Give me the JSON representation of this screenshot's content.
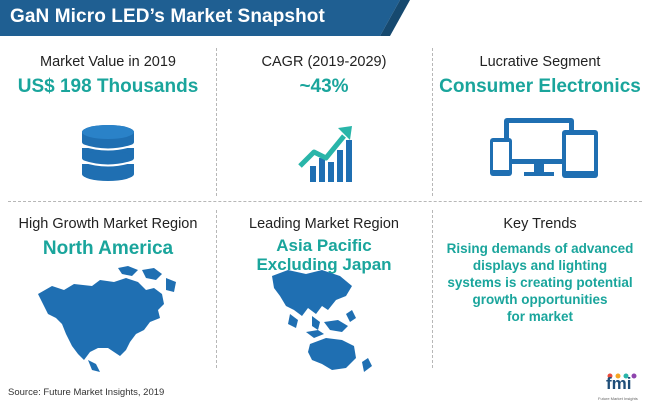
{
  "title": "GaN Micro LED’s Market Snapshot",
  "cells": {
    "market_value": {
      "label": "Market Value in 2019",
      "value": "US$ 198 Thousands"
    },
    "cagr": {
      "label": "CAGR (2019-2029)",
      "value": "~43%"
    },
    "segment": {
      "label": "Lucrative Segment",
      "value": "Consumer Electronics"
    },
    "growth_region": {
      "label": "High Growth Market Region",
      "value": "North America"
    },
    "leading_region": {
      "label": "Leading Market Region",
      "value_line1": "Asia Pacific",
      "value_line2": "Excluding Japan"
    },
    "trends": {
      "label": "Key Trends",
      "lines": [
        "Rising demands of advanced",
        "displays and lighting",
        "systems is creating potential",
        "growth opportunities",
        "for market"
      ]
    }
  },
  "source": "Source: Future Market Insights, 2019",
  "logo": {
    "mark": "fmi",
    "tagline": "Future Market Insights"
  },
  "colors": {
    "banner": "#1f5f92",
    "accent": "#1aa59c",
    "icon_blue": "#1f6fb2"
  },
  "icons": [
    "coins-icon",
    "growth-chart-icon",
    "devices-icon",
    "north-america-map-icon",
    "asia-pacific-map-icon"
  ]
}
